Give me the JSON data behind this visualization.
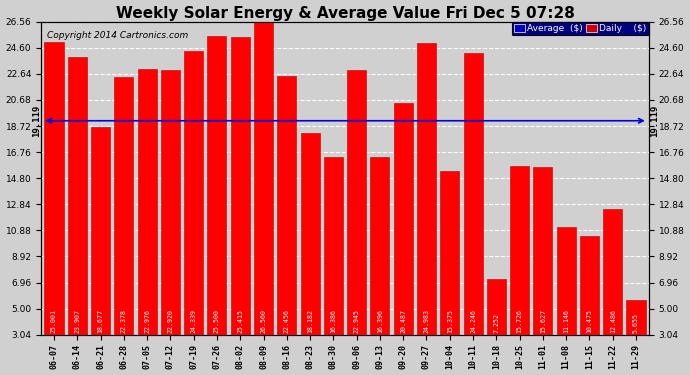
{
  "categories": [
    "06-07",
    "06-14",
    "06-21",
    "06-28",
    "07-05",
    "07-12",
    "07-19",
    "07-26",
    "08-02",
    "08-09",
    "08-16",
    "08-23",
    "08-30",
    "09-06",
    "09-13",
    "09-20",
    "09-27",
    "10-04",
    "10-11",
    "10-18",
    "10-25",
    "11-01",
    "11-08",
    "11-15",
    "11-22",
    "11-29"
  ],
  "values": [
    25.001,
    23.907,
    18.677,
    22.378,
    22.976,
    22.92,
    24.339,
    25.5,
    25.415,
    26.56,
    22.456,
    18.182,
    16.386,
    22.945,
    16.396,
    20.487,
    24.983,
    15.375,
    24.246,
    7.252,
    15.726,
    15.627,
    11.146,
    10.475,
    12.486,
    5.655
  ],
  "bar_color": "#ff0000",
  "average_value": 19.119,
  "average_line_color": "#0000dd",
  "title": "Weekly Solar Energy & Average Value Fri Dec 5 07:28",
  "title_fontsize": 11,
  "copyright_text": "Copyright 2014 Cartronics.com",
  "copyright_fontsize": 6.5,
  "yticks": [
    3.04,
    5.0,
    6.96,
    8.92,
    10.88,
    12.84,
    14.8,
    16.76,
    18.72,
    20.68,
    22.64,
    24.6,
    26.56
  ],
  "ymin": 3.04,
  "ymax": 26.56,
  "background_color": "#d0d0d0",
  "plot_bg_color": "#d0d0d0",
  "grid_color": "white",
  "bar_edge_color": "#bb0000",
  "value_label_color": "white",
  "value_label_fontsize": 4.8,
  "avg_label": "19.119",
  "avg_label_color": "black",
  "avg_label_fontsize": 6.5,
  "legend_avg_bg": "#0000cc",
  "legend_daily_bg": "#cc0000",
  "legend_text_color": "white"
}
